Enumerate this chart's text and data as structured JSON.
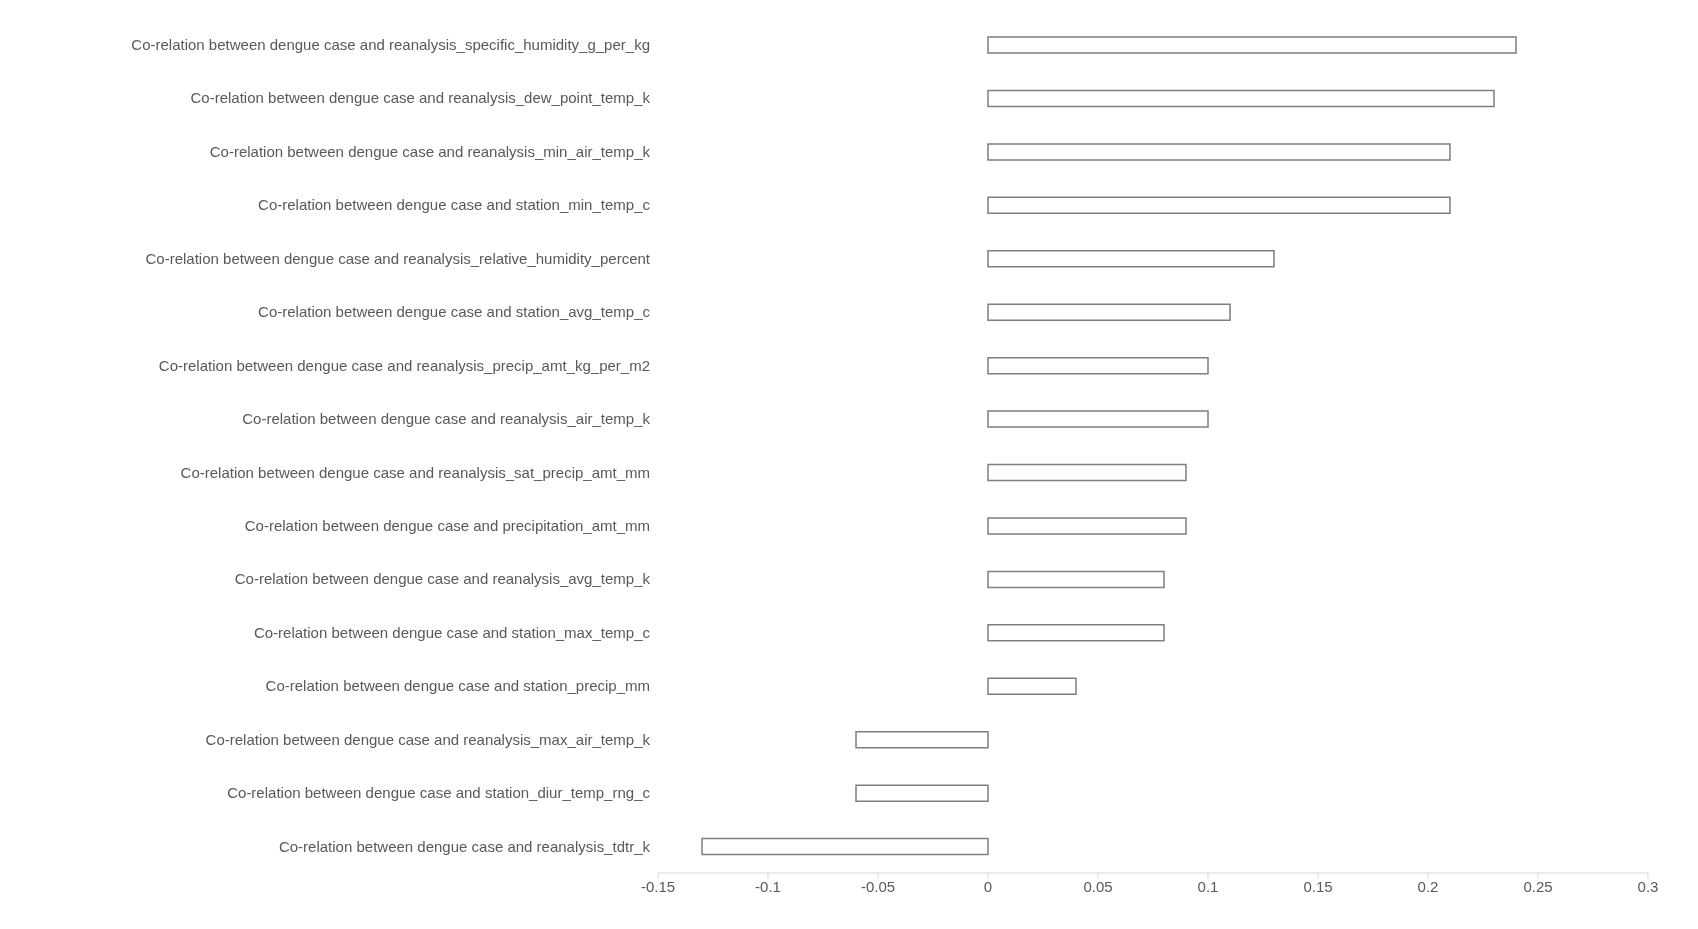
{
  "chart_data": {
    "type": "bar",
    "orientation": "horizontal",
    "categories": [
      "Co-relation between dengue case and reanalysis_specific_humidity_g_per_kg",
      "Co-relation between dengue case and reanalysis_dew_point_temp_k",
      "Co-relation between dengue case and reanalysis_min_air_temp_k",
      "Co-relation between dengue case and station_min_temp_c",
      "Co-relation between dengue case and reanalysis_relative_humidity_percent",
      "Co-relation between dengue case and station_avg_temp_c",
      "Co-relation between dengue case and reanalysis_precip_amt_kg_per_m2",
      "Co-relation between dengue case and reanalysis_air_temp_k",
      "Co-relation between dengue case and reanalysis_sat_precip_amt_mm",
      "Co-relation between dengue case and precipitation_amt_mm",
      "Co-relation between dengue case and reanalysis_avg_temp_k",
      "Co-relation between dengue case and station_max_temp_c",
      "Co-relation between dengue case and station_precip_mm",
      "Co-relation between dengue case and reanalysis_max_air_temp_k",
      "Co-relation between dengue case and station_diur_temp_rng_c",
      "Co-relation between dengue case and reanalysis_tdtr_k"
    ],
    "values": [
      0.24,
      0.23,
      0.21,
      0.21,
      0.13,
      0.11,
      0.1,
      0.1,
      0.09,
      0.09,
      0.08,
      0.08,
      0.04,
      -0.06,
      -0.06,
      -0.13
    ],
    "color": "#ffffff",
    "xlim": [
      -0.15,
      0.3
    ],
    "xticks": [
      -0.15,
      -0.1,
      -0.05,
      0,
      0.05,
      0.1,
      0.15,
      0.2,
      0.25,
      0.3
    ],
    "grid": false,
    "legend": false
  }
}
